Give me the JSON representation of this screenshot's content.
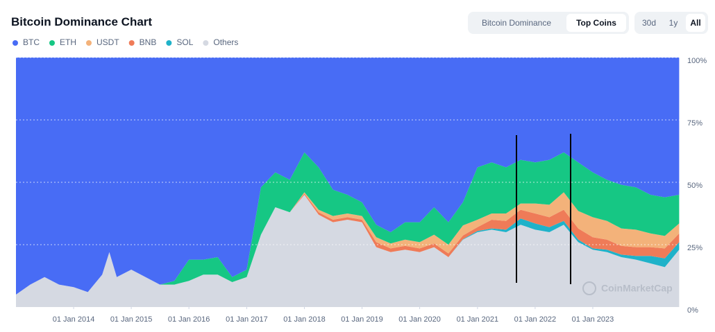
{
  "chart_data": {
    "type": "area",
    "stacked": true,
    "title": "Bitcoin Dominance Chart",
    "watermark": "CoinMarketCap",
    "x": [
      "2013-01-01",
      "2013-04-01",
      "2013-07-01",
      "2013-10-01",
      "2014-01-01",
      "2014-04-01",
      "2014-07-01",
      "2014-08-15",
      "2014-10-01",
      "2015-01-01",
      "2015-04-01",
      "2015-07-01",
      "2015-10-01",
      "2016-01-01",
      "2016-04-01",
      "2016-07-01",
      "2016-10-01",
      "2017-01-01",
      "2017-04-01",
      "2017-07-01",
      "2017-10-01",
      "2018-01-01",
      "2018-04-01",
      "2018-07-01",
      "2018-10-01",
      "2019-01-01",
      "2019-04-01",
      "2019-07-01",
      "2019-10-01",
      "2020-01-01",
      "2020-04-01",
      "2020-07-01",
      "2020-10-01",
      "2021-01-01",
      "2021-04-01",
      "2021-07-01",
      "2021-10-01",
      "2022-01-01",
      "2022-04-01",
      "2022-07-01",
      "2022-10-01",
      "2023-01-01",
      "2023-04-01",
      "2023-07-01",
      "2023-10-01",
      "2024-01-01",
      "2024-04-01",
      "2024-07-01"
    ],
    "series": [
      {
        "name": "BTC",
        "color": "#486cf5",
        "values": [
          95,
          91,
          88,
          91,
          92,
          94,
          87,
          78,
          88,
          85,
          88,
          91,
          89.5,
          81,
          81,
          80,
          88,
          85,
          52,
          46,
          49,
          38,
          44,
          53,
          55,
          58,
          67,
          70,
          66,
          66,
          60,
          66,
          58,
          44,
          42,
          44,
          41,
          42,
          41,
          38,
          42,
          46,
          49,
          51,
          52,
          55,
          56,
          55
        ]
      },
      {
        "name": "ETH",
        "color": "#16c784",
        "values": [
          0,
          0,
          0,
          0,
          0,
          0,
          0,
          0,
          0,
          0,
          0,
          0,
          1.5,
          8.5,
          6,
          7,
          2,
          3,
          19,
          14,
          13,
          16,
          17,
          10.5,
          7.5,
          5.5,
          5,
          4.5,
          7,
          8,
          11,
          9,
          9.3,
          21,
          20.5,
          18.5,
          17.5,
          16.5,
          18,
          16,
          19.5,
          18,
          16.5,
          17.5,
          17,
          15.5,
          15.5,
          11.5
        ]
      },
      {
        "name": "USDT",
        "color": "#f3b27a",
        "values": [
          0,
          0,
          0,
          0,
          0,
          0,
          0,
          0,
          0,
          0,
          0,
          0,
          0,
          0,
          0,
          0,
          0,
          0,
          0,
          0,
          0,
          0.5,
          1,
          1.5,
          1.5,
          1.5,
          2,
          2,
          2.5,
          2.5,
          3.5,
          3.5,
          4,
          3,
          2.5,
          3,
          2.5,
          4,
          5,
          7,
          7,
          8,
          7.5,
          7,
          7,
          5.5,
          5,
          4
        ]
      },
      {
        "name": "BNB",
        "color": "#ef7b58",
        "values": [
          0,
          0,
          0,
          0,
          0,
          0,
          0,
          0,
          0,
          0,
          0,
          0,
          0,
          0,
          0,
          0,
          0,
          0,
          0,
          0,
          0,
          0.5,
          1,
          1,
          1,
          1,
          2,
          1.5,
          1.5,
          1.5,
          1.5,
          1.5,
          1.5,
          1.5,
          3.5,
          3.5,
          3.5,
          4,
          4,
          4.5,
          4.5,
          4.5,
          4,
          3.5,
          3.5,
          3.5,
          4,
          3.5
        ]
      },
      {
        "name": "SOL",
        "color": "#1fb2c9",
        "values": [
          0,
          0,
          0,
          0,
          0,
          0,
          0,
          0,
          0,
          0,
          0,
          0,
          0,
          0,
          0,
          0,
          0,
          0,
          0,
          0,
          0,
          0,
          0,
          0,
          0,
          0,
          0,
          0,
          0,
          0,
          0,
          0,
          0.2,
          0.5,
          0.5,
          1,
          2.5,
          2.5,
          2,
          1.5,
          1,
          0.5,
          1,
          1,
          1.5,
          3,
          3.5,
          3
        ]
      },
      {
        "name": "Others",
        "color": "#d5d9e2",
        "values": [
          5,
          9,
          12,
          9,
          8,
          6,
          13,
          22,
          12,
          15,
          12,
          9,
          9,
          10.5,
          13,
          13,
          10,
          12,
          29,
          40,
          38,
          45,
          37,
          34,
          35,
          34,
          24,
          22,
          23,
          22,
          24,
          20,
          27,
          30,
          31,
          30,
          33,
          31,
          30,
          33,
          26,
          23,
          22,
          20,
          19,
          17.5,
          16,
          23
        ]
      }
    ],
    "xlim": [
      "2012-12-10",
      "2024-07-30"
    ],
    "xticks": [
      {
        "value": "2014-01-01",
        "label": "01 Jan 2014"
      },
      {
        "value": "2015-01-01",
        "label": "01 Jan 2015"
      },
      {
        "value": "2016-01-01",
        "label": "01 Jan 2016"
      },
      {
        "value": "2017-01-01",
        "label": "01 Jan 2017"
      },
      {
        "value": "2018-01-01",
        "label": "01 Jan 2018"
      },
      {
        "value": "2019-01-01",
        "label": "01 Jan 2019"
      },
      {
        "value": "2020-01-01",
        "label": "01 Jan 2020"
      },
      {
        "value": "2021-01-01",
        "label": "01 Jan 2021"
      },
      {
        "value": "2022-01-01",
        "label": "01 Jan 2022"
      },
      {
        "value": "2023-01-01",
        "label": "01 Jan 2023"
      }
    ],
    "ylim": [
      0,
      100
    ],
    "yticks": [
      {
        "value": 0,
        "label": "0%"
      },
      {
        "value": 25,
        "label": "25%"
      },
      {
        "value": 50,
        "label": "50%"
      },
      {
        "value": 75,
        "label": "75%"
      },
      {
        "value": 100,
        "label": "100%"
      }
    ],
    "grid": true
  },
  "controls": {
    "views": [
      "Bitcoin Dominance",
      "Top Coins"
    ],
    "ranges": [
      "30d",
      "1y",
      "All"
    ]
  }
}
